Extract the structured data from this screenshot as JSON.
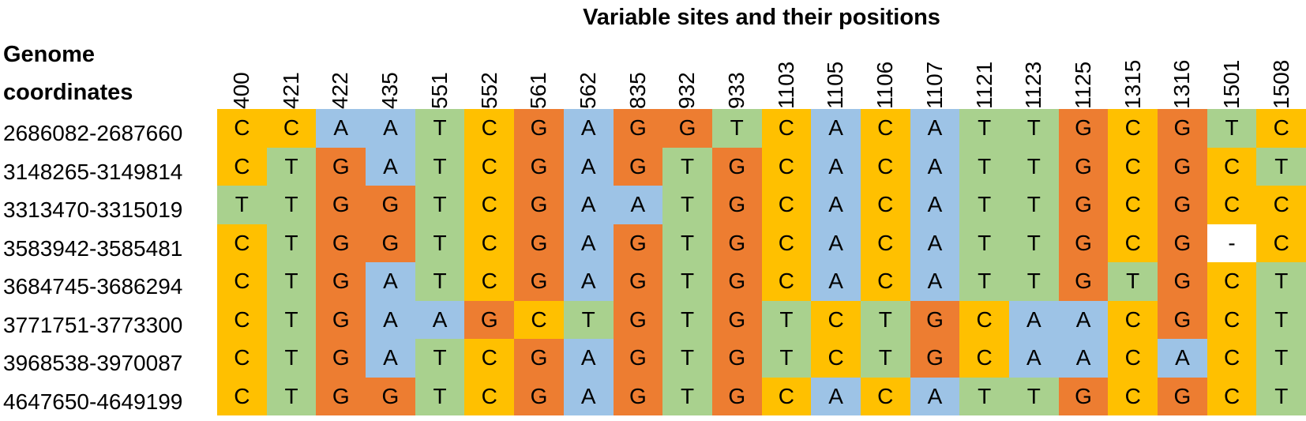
{
  "title": "Variable sites and their positions",
  "row_header": [
    "Genome",
    "coordinates"
  ],
  "positions": [
    "400",
    "421",
    "422",
    "435",
    "551",
    "552",
    "561",
    "562",
    "835",
    "932",
    "933",
    "1103",
    "1105",
    "1106",
    "1107",
    "1121",
    "1123",
    "1125",
    "1315",
    "1316",
    "1501",
    "1508"
  ],
  "colors": {
    "A": "#9DC3E6",
    "C": "#FFC000",
    "G": "#ED7D31",
    "T": "#A9D18E",
    "-": "#FFFFFF"
  },
  "rows": [
    {
      "coord": "2686082-2687660",
      "bases": [
        "C",
        "C",
        "A",
        "A",
        "T",
        "C",
        "G",
        "A",
        "G",
        "G",
        "T",
        "C",
        "A",
        "C",
        "A",
        "T",
        "T",
        "G",
        "C",
        "G",
        "T",
        "C"
      ]
    },
    {
      "coord": "3148265-3149814",
      "bases": [
        "C",
        "T",
        "G",
        "A",
        "T",
        "C",
        "G",
        "A",
        "G",
        "T",
        "G",
        "C",
        "A",
        "C",
        "A",
        "T",
        "T",
        "G",
        "C",
        "G",
        "C",
        "T"
      ]
    },
    {
      "coord": "3313470-3315019",
      "bases": [
        "T",
        "T",
        "G",
        "G",
        "T",
        "C",
        "G",
        "A",
        "A",
        "T",
        "G",
        "C",
        "A",
        "C",
        "A",
        "T",
        "T",
        "G",
        "C",
        "G",
        "C",
        "C"
      ]
    },
    {
      "coord": "3583942-3585481",
      "bases": [
        "C",
        "T",
        "G",
        "G",
        "T",
        "C",
        "G",
        "A",
        "G",
        "T",
        "G",
        "C",
        "A",
        "C",
        "A",
        "T",
        "T",
        "G",
        "C",
        "G",
        "-",
        "C"
      ]
    },
    {
      "coord": "3684745-3686294",
      "bases": [
        "C",
        "T",
        "G",
        "A",
        "T",
        "C",
        "G",
        "A",
        "G",
        "T",
        "G",
        "C",
        "A",
        "C",
        "A",
        "T",
        "T",
        "G",
        "T",
        "G",
        "C",
        "T"
      ]
    },
    {
      "coord": "3771751-3773300",
      "bases": [
        "C",
        "T",
        "G",
        "A",
        "A",
        "G",
        "C",
        "T",
        "G",
        "T",
        "G",
        "T",
        "C",
        "T",
        "G",
        "C",
        "A",
        "A",
        "C",
        "G",
        "C",
        "T"
      ]
    },
    {
      "coord": "3968538-3970087",
      "bases": [
        "C",
        "T",
        "G",
        "A",
        "T",
        "C",
        "G",
        "A",
        "G",
        "T",
        "G",
        "T",
        "C",
        "T",
        "G",
        "C",
        "A",
        "A",
        "C",
        "A",
        "C",
        "T"
      ]
    },
    {
      "coord": "4647650-4649199",
      "bases": [
        "C",
        "T",
        "G",
        "G",
        "T",
        "C",
        "G",
        "A",
        "G",
        "T",
        "G",
        "C",
        "A",
        "C",
        "A",
        "T",
        "T",
        "G",
        "C",
        "G",
        "C",
        "T"
      ]
    }
  ]
}
